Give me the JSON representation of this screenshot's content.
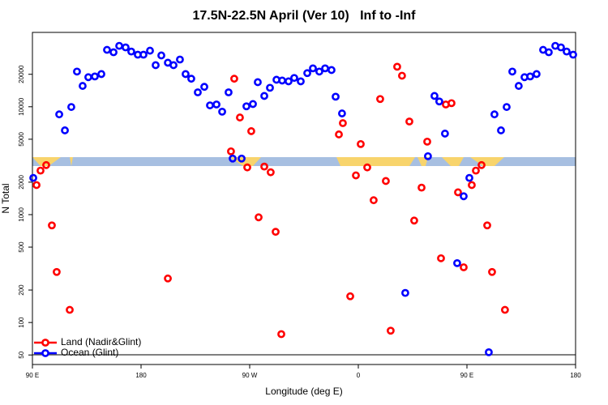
{
  "chart_data": {
    "type": "scatter",
    "title": "17.5N-22.5N April (Ver 10)   Inf to -Inf",
    "xlabel": "Longitude (deg E)",
    "ylabel": "N Total",
    "xlim": [
      90,
      540
    ],
    "xticks": [
      {
        "value": 90,
        "label": "90 E"
      },
      180,
      {
        "value": 270,
        "label": "90 W"
      },
      {
        "value": 360,
        "label": "0"
      },
      {
        "value": 450,
        "label": "90 E"
      },
      {
        "value": 540,
        "label": "180"
      }
    ],
    "ylim": [
      40.8,
      48900
    ],
    "ylog": true,
    "yticks": [
      50,
      100,
      200,
      500,
      1000,
      2000,
      5000,
      10000,
      20000
    ],
    "legend": "bottomleft",
    "series": [
      {
        "name": "Land (Nadir&Glint)",
        "color": "#ff0000",
        "x": [
          93.4,
          96.7,
          101.4,
          106.1,
          110.1,
          120.9,
          202.2,
          254.5,
          257.2,
          261.9,
          268.0,
          271.3,
          277.4,
          282.1,
          287.4,
          291.5,
          296.2,
          343.9,
          347.2,
          353.3,
          358.0,
          362.0,
          367.4,
          372.7,
          378.1,
          382.8,
          386.8,
          392.2,
          396.2,
          402.3,
          406.3,
          412.4,
          417.1,
          428.5,
          432.5,
          437.2,
          442.6,
          447.3,
          454.0,
          457.4,
          462.1,
          466.8,
          470.8,
          481.5
        ],
        "values": [
          1880,
          2560,
          2880,
          795,
          294,
          131,
          256,
          3860,
          18200,
          7950,
          2740,
          5940,
          944,
          2790,
          2470,
          693,
          78,
          5540,
          7050,
          175,
          2310,
          4510,
          2740,
          1360,
          11800,
          2050,
          84,
          23500,
          19400,
          7300,
          881,
          1780,
          4750,
          394,
          10500,
          10800,
          1610,
          325,
          1880,
          2560,
          2880,
          795,
          294,
          131
        ]
      },
      {
        "name": "Ocean (Glint)",
        "color": "#0000ff",
        "x": [
          90.7,
          112.2,
          116.9,
          122.2,
          126.9,
          131.6,
          136.3,
          141.7,
          147.1,
          151.8,
          157.2,
          161.9,
          167.2,
          171.9,
          177.3,
          182.0,
          187.4,
          192.1,
          196.8,
          202.2,
          206.9,
          212.2,
          216.9,
          221.6,
          227.0,
          232.4,
          237.1,
          242.5,
          247.2,
          252.5,
          255.9,
          263.3,
          267.3,
          272.7,
          276.7,
          282.1,
          286.8,
          292.2,
          296.9,
          302.2,
          306.9,
          312.3,
          317.7,
          322.4,
          327.7,
          332.5,
          337.8,
          341.2,
          346.5,
          398.9,
          417.7,
          423.1,
          427.1,
          431.8,
          441.9,
          447.3,
          452.0,
          468.1,
          472.8,
          478.2,
          482.9,
          487.6,
          492.9,
          497.7,
          502.4,
          507.7,
          513.1,
          517.8,
          523.2,
          527.9,
          532.6,
          538.0
        ],
        "values": [
          2190,
          8500,
          6040,
          9950,
          21200,
          15600,
          18800,
          19100,
          20100,
          33700,
          32000,
          36700,
          35500,
          32500,
          30400,
          30400,
          33100,
          24300,
          29900,
          25600,
          24300,
          27400,
          20100,
          18200,
          13600,
          15300,
          10300,
          10500,
          9000,
          13600,
          3310,
          3310,
          10100,
          10600,
          16900,
          12600,
          15000,
          17800,
          17500,
          17200,
          18500,
          17200,
          20500,
          22700,
          21200,
          22700,
          21900,
          12400,
          8670,
          188,
          3480,
          12600,
          11200,
          5640,
          355,
          1480,
          2190,
          53,
          8500,
          6040,
          9950,
          21200,
          15600,
          18800,
          19100,
          20100,
          33700,
          32000,
          36700,
          35500,
          32500,
          30400
        ]
      }
    ]
  }
}
